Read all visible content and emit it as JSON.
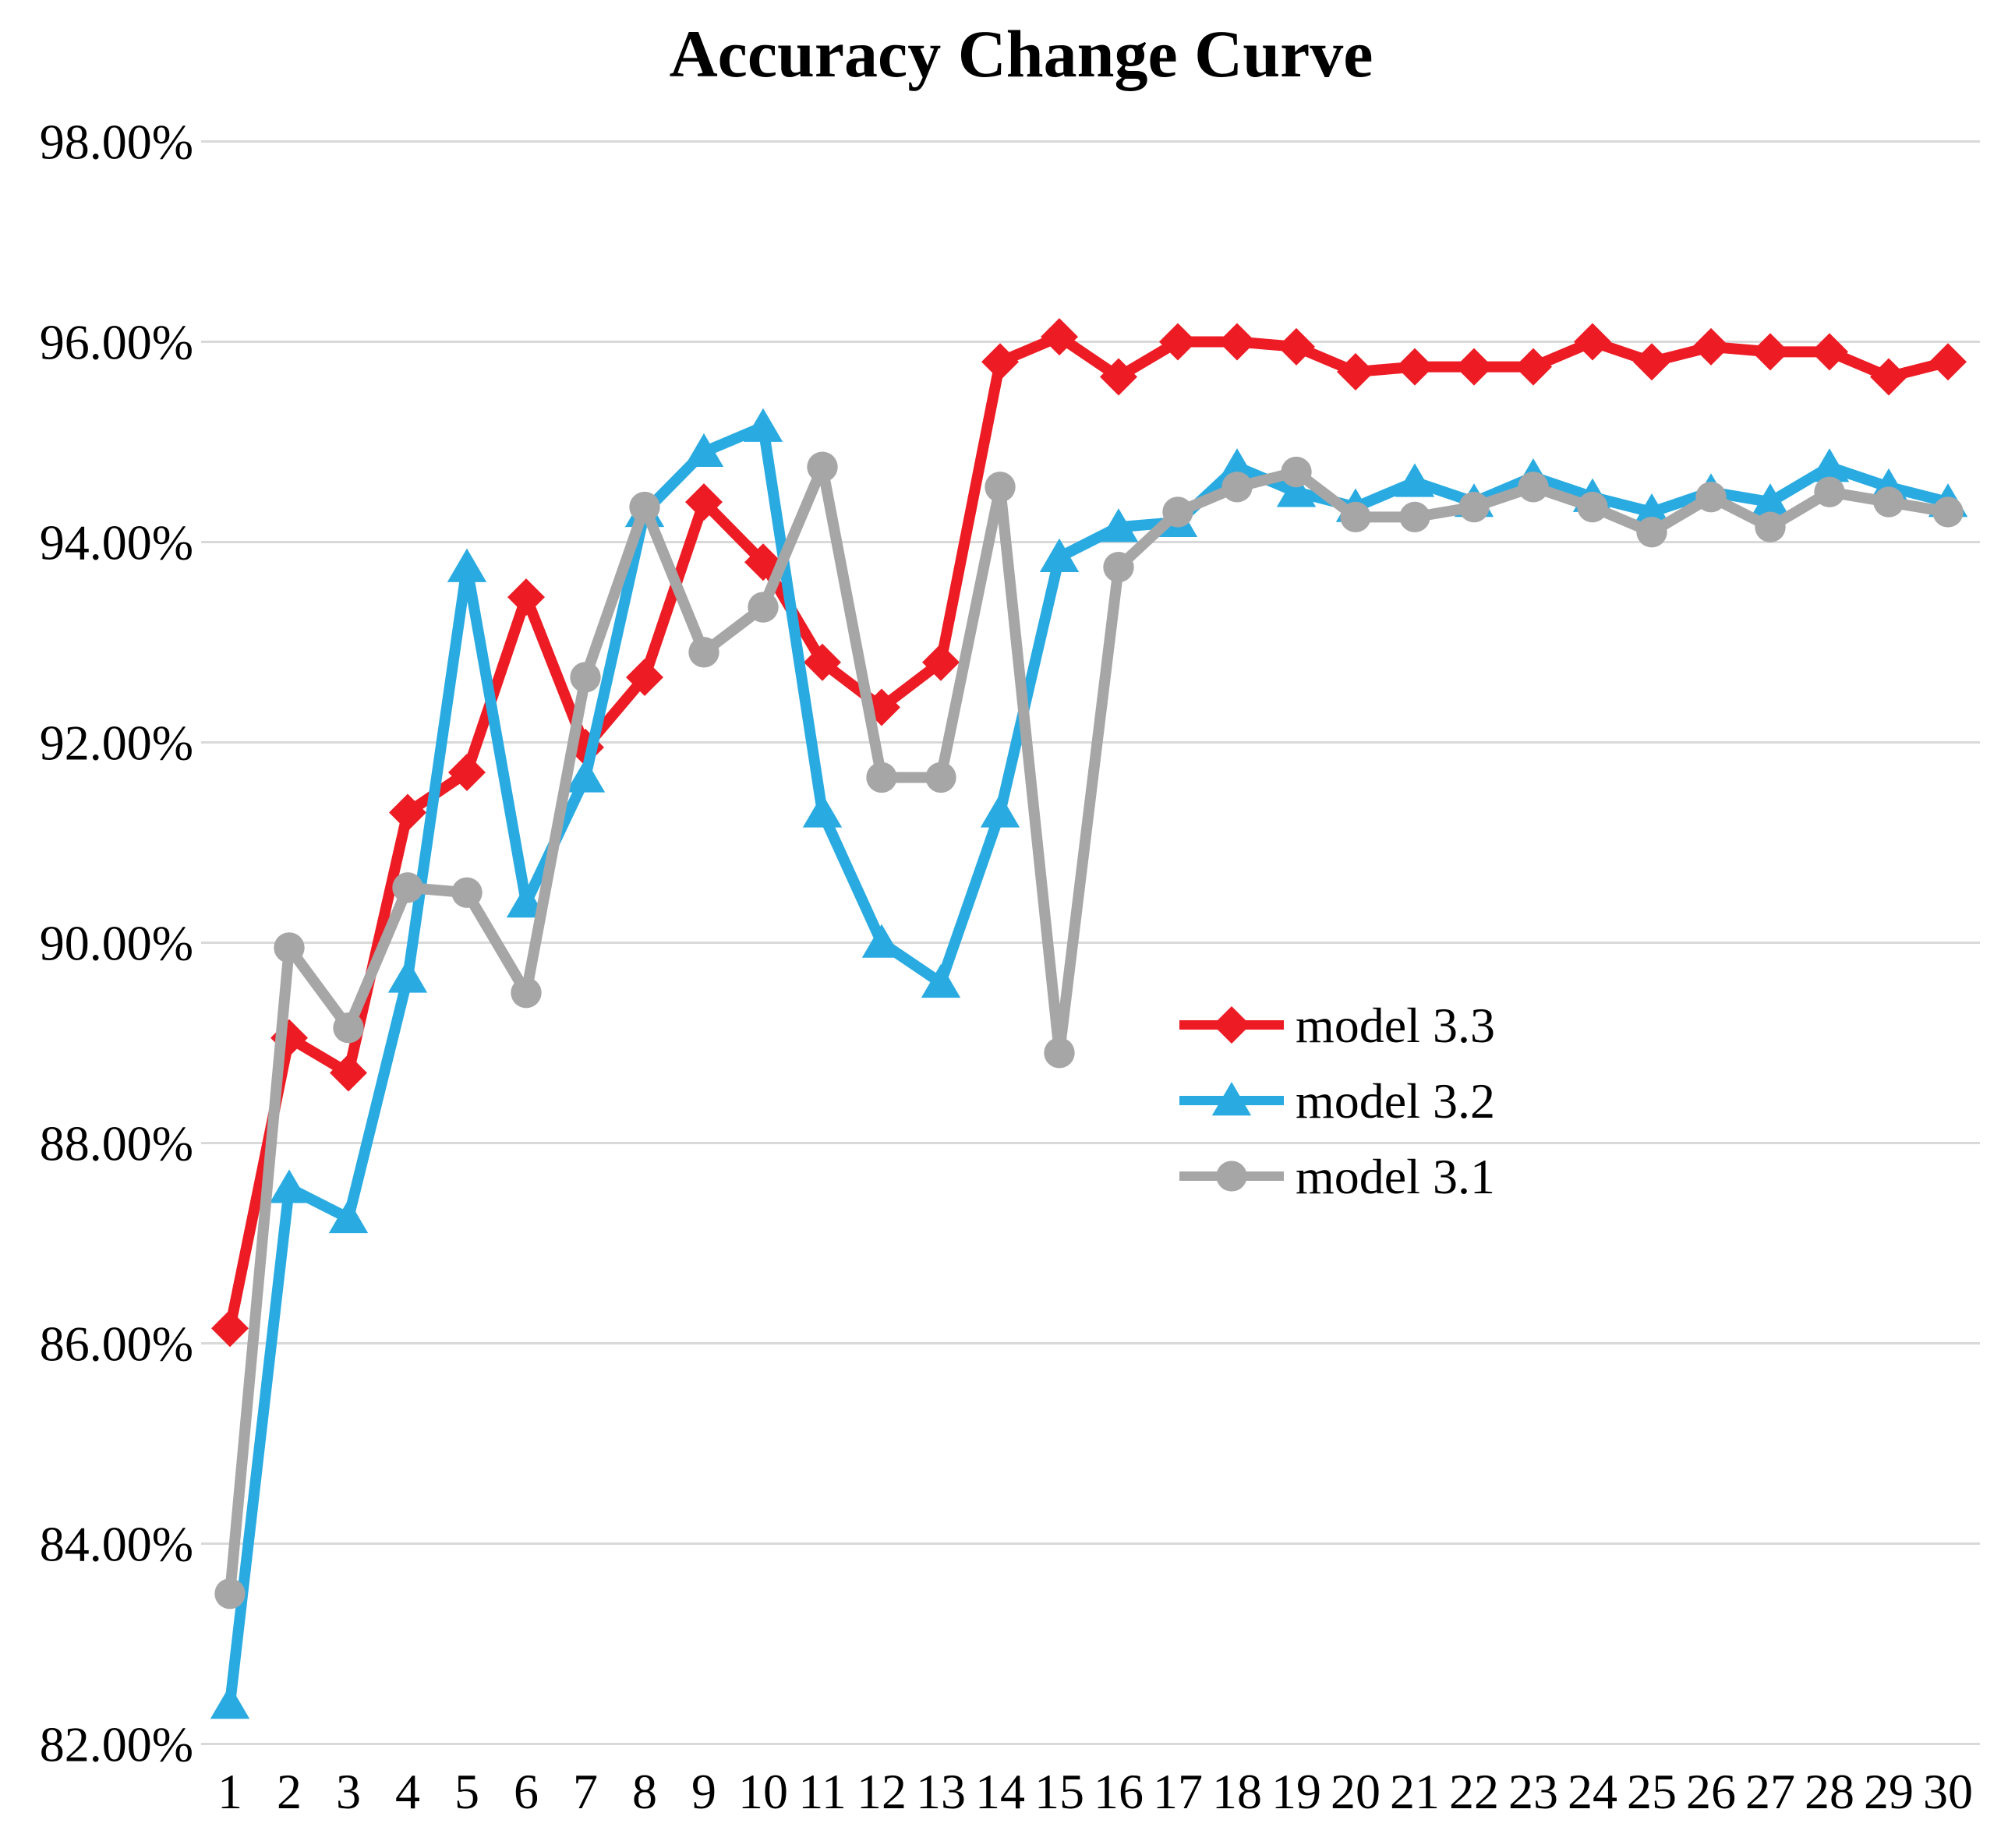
{
  "chart_data": {
    "type": "line",
    "title": "Accuracy Change Curve",
    "xlabel": "",
    "ylabel": "",
    "x_categories": [
      1,
      2,
      3,
      4,
      5,
      6,
      7,
      8,
      9,
      10,
      11,
      12,
      13,
      14,
      15,
      16,
      17,
      18,
      19,
      20,
      21,
      22,
      23,
      24,
      25,
      26,
      27,
      28,
      29,
      30
    ],
    "y_axis": {
      "min": 82,
      "max": 98,
      "step": 2,
      "tick_labels_top_to_bottom": [
        "98.00%",
        "96.00%",
        "94.00%",
        "92.00%",
        "90.00%",
        "88.00%",
        "86.00%",
        "84.00%",
        "82.00%"
      ]
    },
    "grid": true,
    "legend_position": "right-middle",
    "series": [
      {
        "name": "model 3.3",
        "color": "#ED1C24",
        "marker": "diamond",
        "values": [
          86.15,
          89.05,
          88.7,
          91.3,
          91.7,
          93.45,
          91.95,
          92.65,
          94.4,
          93.8,
          92.8,
          92.35,
          92.8,
          95.8,
          96.05,
          95.65,
          96.0,
          96.0,
          95.95,
          95.7,
          95.75,
          95.75,
          95.75,
          96.0,
          95.8,
          95.95,
          95.9,
          95.9,
          95.65,
          95.8
        ]
      },
      {
        "name": "model 3.2",
        "color": "#29ABE2",
        "marker": "triangle",
        "values": [
          82.4,
          87.55,
          87.25,
          89.65,
          93.75,
          90.4,
          91.65,
          94.3,
          94.9,
          95.15,
          91.3,
          90.0,
          89.6,
          91.3,
          93.85,
          94.15,
          94.2,
          94.75,
          94.5,
          94.35,
          94.6,
          94.4,
          94.65,
          94.45,
          94.3,
          94.5,
          94.4,
          94.75,
          94.55,
          94.4
        ]
      },
      {
        "name": "model 3.1",
        "color": "#A6A6A6",
        "marker": "circle",
        "values": [
          83.5,
          89.95,
          89.15,
          90.55,
          90.5,
          89.5,
          92.65,
          94.35,
          92.9,
          93.35,
          94.75,
          91.65,
          91.65,
          94.55,
          88.9,
          93.75,
          94.3,
          94.55,
          94.7,
          94.25,
          94.25,
          94.35,
          94.55,
          94.35,
          94.1,
          94.45,
          94.15,
          94.5,
          94.4,
          94.3
        ]
      }
    ]
  },
  "colors": {
    "grid": "#D9D9D9",
    "text": "#000000",
    "background": "#FFFFFF"
  }
}
